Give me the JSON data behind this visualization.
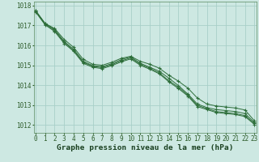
{
  "xlabel": "Graphe pression niveau de la mer (hPa)",
  "ylim": [
    1011.6,
    1018.2
  ],
  "xlim": [
    -0.2,
    23.2
  ],
  "yticks": [
    1012,
    1013,
    1014,
    1015,
    1016,
    1017,
    1018
  ],
  "xticks": [
    0,
    1,
    2,
    3,
    4,
    5,
    6,
    7,
    8,
    9,
    10,
    11,
    12,
    13,
    14,
    15,
    16,
    17,
    18,
    19,
    20,
    21,
    22,
    23
  ],
  "bg_color": "#cde8e2",
  "grid_color": "#a8cfc8",
  "line_color": "#2d6e3a",
  "series": [
    [
      1017.75,
      1017.1,
      1016.85,
      1016.3,
      1015.9,
      1015.3,
      1015.05,
      1015.0,
      1015.15,
      1015.35,
      1015.45,
      1015.2,
      1015.05,
      1014.85,
      1014.5,
      1014.2,
      1013.85,
      1013.35,
      1013.05,
      1012.95,
      1012.9,
      1012.85,
      1012.75,
      1012.2
    ],
    [
      1017.75,
      1017.1,
      1016.8,
      1016.2,
      1015.8,
      1015.2,
      1014.98,
      1014.93,
      1015.08,
      1015.28,
      1015.42,
      1015.1,
      1014.9,
      1014.7,
      1014.35,
      1013.98,
      1013.55,
      1013.05,
      1012.87,
      1012.77,
      1012.72,
      1012.67,
      1012.57,
      1012.12
    ],
    [
      1017.72,
      1017.07,
      1016.75,
      1016.15,
      1015.75,
      1015.15,
      1014.95,
      1014.88,
      1015.03,
      1015.22,
      1015.37,
      1015.05,
      1014.85,
      1014.62,
      1014.22,
      1013.9,
      1013.5,
      1012.98,
      1012.82,
      1012.67,
      1012.62,
      1012.57,
      1012.47,
      1012.07
    ],
    [
      1017.68,
      1017.03,
      1016.7,
      1016.1,
      1015.7,
      1015.1,
      1014.9,
      1014.83,
      1014.98,
      1015.17,
      1015.32,
      1015.0,
      1014.8,
      1014.57,
      1014.17,
      1013.83,
      1013.45,
      1012.92,
      1012.77,
      1012.62,
      1012.57,
      1012.52,
      1012.42,
      1012.02
    ]
  ],
  "marker": "+",
  "markersize": 3,
  "markeredgewidth": 0.8,
  "linewidth": 0.7,
  "tick_fontsize": 5.5,
  "label_fontsize": 6.8,
  "tick_color": "#2d5c2a",
  "label_color": "#1a4020",
  "spine_color": "#5a8a60"
}
